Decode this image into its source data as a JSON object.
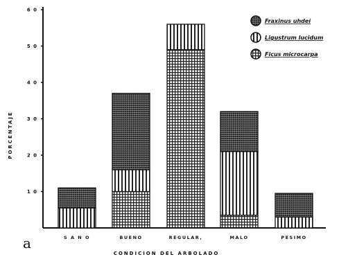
{
  "chart_data": {
    "type": "bar",
    "stacked": true,
    "panel_letter": "a",
    "categories": [
      "S A N O",
      "BUENO",
      "REGULAR,",
      "MALO",
      "PESIMO"
    ],
    "xlabel": "CONDICION  DEL  ARBOLADO",
    "ylabel": "PORCENTAJE",
    "ylim": [
      0,
      60
    ],
    "yticks": [
      10,
      20,
      30,
      40,
      50,
      60
    ],
    "ytick_labels": [
      "1 0",
      "2 0",
      "3 0",
      "4 0",
      "5 0",
      "6 0"
    ],
    "series": [
      {
        "name": "Ficus microcarpa",
        "pattern": "grid",
        "values": [
          0,
          10,
          49,
          3.5,
          0
        ]
      },
      {
        "name": "Ligustrum lucidum",
        "pattern": "vstripes",
        "values": [
          5.5,
          6,
          7,
          17.5,
          3
        ]
      },
      {
        "name": "Fraxinus uhdei",
        "pattern": "dense",
        "values": [
          5.5,
          21,
          0,
          11,
          6.5
        ]
      }
    ],
    "legend_order": [
      2,
      1,
      0
    ],
    "legend_position": "top-right"
  }
}
